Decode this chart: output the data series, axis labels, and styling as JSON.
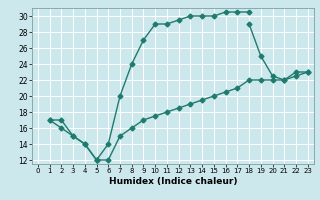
{
  "xlabel": "Humidex (Indice chaleur)",
  "bg_color": "#cce8ec",
  "line_color": "#1e7b6e",
  "grid_color": "#ffffff",
  "xlim": [
    -0.5,
    23.5
  ],
  "ylim": [
    11.5,
    31.0
  ],
  "xticks": [
    0,
    1,
    2,
    3,
    4,
    5,
    6,
    7,
    8,
    9,
    10,
    11,
    12,
    13,
    14,
    15,
    16,
    17,
    18,
    19,
    20,
    21,
    22,
    23
  ],
  "yticks": [
    12,
    14,
    16,
    18,
    20,
    22,
    24,
    26,
    28,
    30
  ],
  "line1_x": [
    1,
    2,
    3,
    4,
    5,
    5,
    6,
    7,
    8,
    9,
    10,
    11,
    12,
    13,
    14,
    15,
    16,
    17,
    18
  ],
  "line1_y": [
    17,
    17,
    15,
    14,
    12,
    12,
    14,
    20,
    24,
    27,
    29,
    29,
    29.5,
    30,
    30,
    30,
    30.5,
    30.5,
    30.5
  ],
  "line2_x": [
    1,
    2,
    3,
    4,
    5,
    6,
    7,
    8,
    9,
    10,
    11,
    12,
    13,
    14,
    15,
    16,
    17,
    18,
    19,
    20,
    21,
    22,
    23
  ],
  "line2_y": [
    17,
    16,
    15,
    14,
    12,
    12,
    15,
    16,
    17,
    17.5,
    18,
    18.5,
    19,
    19.5,
    20,
    20.5,
    21,
    22,
    22,
    22,
    22,
    22.5,
    23
  ],
  "line3_x": [
    18,
    19,
    20,
    21,
    22,
    23
  ],
  "line3_y": [
    29,
    25,
    22.5,
    22,
    23,
    23
  ]
}
